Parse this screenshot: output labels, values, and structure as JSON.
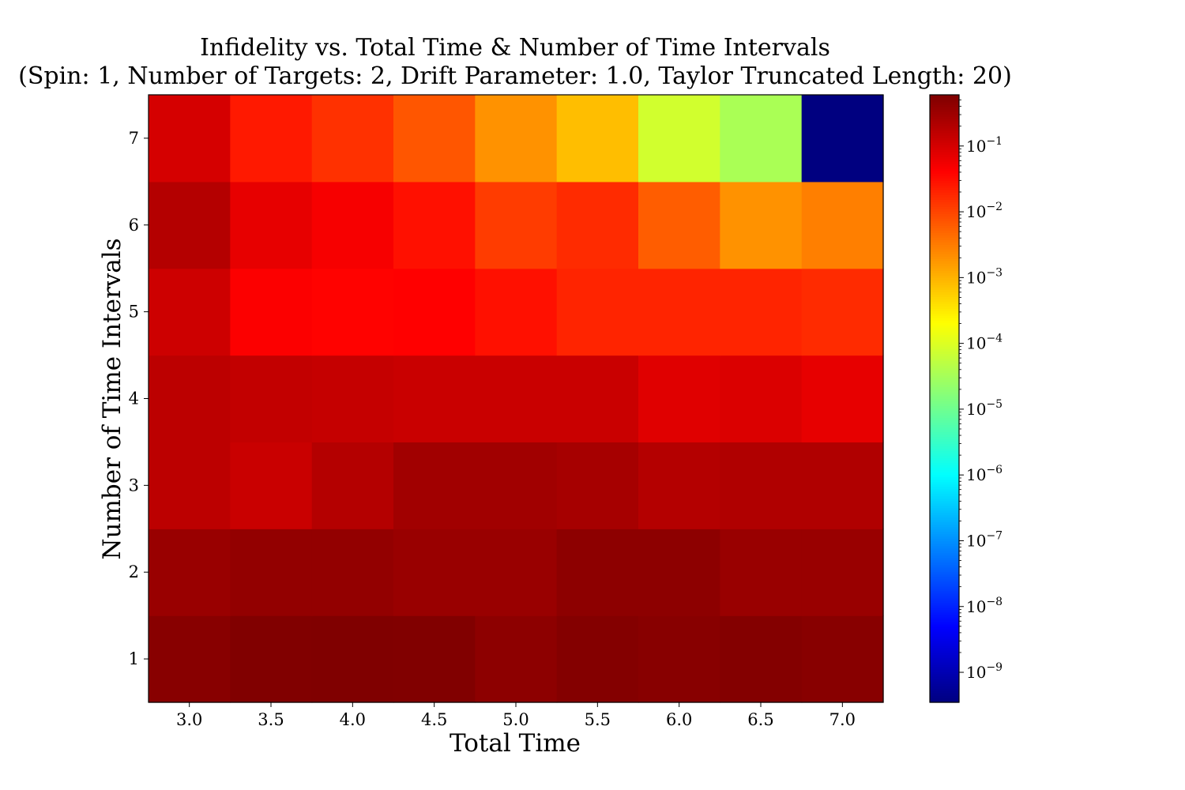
{
  "chart_data": {
    "type": "heatmap",
    "title": "Infidelity vs. Total Time & Number of Time Intervals",
    "subtitle": "(Spin: 1, Number of Targets: 2, Drift Parameter: 1.0, Taylor Truncated Length: 20)",
    "xlabel": "Total Time",
    "ylabel": "Number of Time Intervals",
    "x": [
      3.0,
      3.5,
      4.0,
      4.5,
      5.0,
      5.5,
      6.0,
      6.5,
      7.0
    ],
    "x_tick_labels": [
      "3.0",
      "3.5",
      "4.0",
      "4.5",
      "5.0",
      "5.5",
      "6.0",
      "6.5",
      "7.0"
    ],
    "y": [
      1,
      2,
      3,
      4,
      5,
      6,
      7
    ],
    "y_tick_labels": [
      "1",
      "2",
      "3",
      "4",
      "5",
      "6",
      "7"
    ],
    "colormap": "jet",
    "color_scale": "log",
    "color_range": [
      3.5e-10,
      0.6
    ],
    "colorbar_ticks": [
      {
        "value": 0.1,
        "base": "10",
        "exp": "−1"
      },
      {
        "value": 0.01,
        "base": "10",
        "exp": "−2"
      },
      {
        "value": 0.001,
        "base": "10",
        "exp": "−3"
      },
      {
        "value": 0.0001,
        "base": "10",
        "exp": "−4"
      },
      {
        "value": 1e-05,
        "base": "10",
        "exp": "−5"
      },
      {
        "value": 1e-06,
        "base": "10",
        "exp": "−6"
      },
      {
        "value": 1e-07,
        "base": "10",
        "exp": "−7"
      },
      {
        "value": 1e-08,
        "base": "10",
        "exp": "−8"
      },
      {
        "value": 1e-09,
        "base": "10",
        "exp": "−9"
      }
    ],
    "values": [
      [
        0.5,
        0.58,
        0.6,
        0.58,
        0.45,
        0.55,
        0.5,
        0.55,
        0.5
      ],
      [
        0.35,
        0.4,
        0.4,
        0.35,
        0.35,
        0.45,
        0.45,
        0.35,
        0.35
      ],
      [
        0.17,
        0.13,
        0.2,
        0.3,
        0.3,
        0.27,
        0.2,
        0.22,
        0.22
      ],
      [
        0.17,
        0.15,
        0.14,
        0.13,
        0.13,
        0.13,
        0.08,
        0.09,
        0.07
      ],
      [
        0.12,
        0.045,
        0.04,
        0.042,
        0.03,
        0.02,
        0.02,
        0.02,
        0.017
      ],
      [
        0.2,
        0.07,
        0.05,
        0.03,
        0.012,
        0.017,
        0.006,
        0.002,
        0.003
      ],
      [
        0.1,
        0.025,
        0.015,
        0.007,
        0.002,
        0.0008,
        8e-05,
        3.5e-05,
        3.5e-10
      ]
    ]
  }
}
